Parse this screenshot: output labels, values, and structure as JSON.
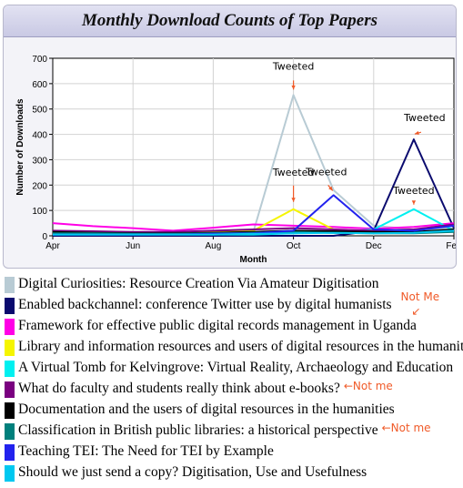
{
  "chart_data": {
    "type": "line",
    "title": "Monthly Download Counts of Top Papers",
    "xlabel": "Month",
    "ylabel": "Number of Downloads",
    "ylim": [
      0,
      700
    ],
    "yticks": [
      0,
      100,
      200,
      300,
      400,
      500,
      600,
      700
    ],
    "x": [
      "Apr",
      "May",
      "Jun",
      "Jul",
      "Aug",
      "Sep",
      "Oct",
      "Nov",
      "Dec",
      "Jan",
      "Feb"
    ],
    "xtick_labels": [
      "Apr",
      "Jun",
      "Aug",
      "Oct",
      "Dec",
      "Feb"
    ],
    "grid": true,
    "legend_position": "bottom",
    "series": [
      {
        "name": "Digital Curiosities: Resource Creation Via Amateur Digitisation",
        "color": "#b8cbd4",
        "values": [
          10,
          8,
          5,
          5,
          8,
          15,
          555,
          180,
          40,
          25,
          30
        ]
      },
      {
        "name": "Enabled backchannel: conference Twitter use by digital humanists",
        "color": "#0a0a6e",
        "values": [
          0,
          0,
          0,
          0,
          0,
          0,
          0,
          0,
          20,
          380,
          30
        ]
      },
      {
        "name": "Framework for effective public digital records management in Uganda",
        "color": "#ff00e6",
        "values": [
          50,
          38,
          30,
          20,
          32,
          45,
          40,
          35,
          28,
          35,
          50
        ]
      },
      {
        "name": "Library and information resources and users of digital resources in the humanities",
        "color": "#f5f500",
        "values": [
          20,
          15,
          12,
          12,
          15,
          20,
          105,
          25,
          15,
          15,
          20
        ]
      },
      {
        "name": "A Virtual Tomb for Kelvingrove: Virtual Reality, Archaeology and Education",
        "color": "#00f0f0",
        "values": [
          5,
          5,
          5,
          5,
          5,
          5,
          10,
          15,
          25,
          105,
          20
        ]
      },
      {
        "name": "What do faculty and students really think about e-books?",
        "color": "#7a0080",
        "values": [
          20,
          18,
          15,
          15,
          20,
          25,
          30,
          25,
          20,
          25,
          45
        ]
      },
      {
        "name": "Documentation and the users of digital resources in the humanities",
        "color": "#000000",
        "values": [
          15,
          12,
          10,
          10,
          12,
          15,
          20,
          18,
          15,
          15,
          25
        ]
      },
      {
        "name": "Classification in British public libraries: a historical perspective",
        "color": "#00807c",
        "values": [
          10,
          10,
          8,
          8,
          10,
          12,
          15,
          12,
          10,
          10,
          15
        ]
      },
      {
        "name": "Teaching TEI: The Need for TEI by Example",
        "color": "#2222ee",
        "values": [
          5,
          5,
          5,
          5,
          8,
          10,
          20,
          160,
          25,
          20,
          40
        ]
      },
      {
        "name": "Should we just send a copy? Digitisation, Use and Usefulness",
        "color": "#00c8f0",
        "values": [
          5,
          5,
          5,
          5,
          5,
          8,
          10,
          12,
          10,
          12,
          20
        ]
      }
    ],
    "annotations": [
      {
        "text": "Tweeted",
        "series": "Digital Curiosities: Resource Creation Via Amateur Digitisation",
        "month": "Oct",
        "value": 555
      },
      {
        "text": "Tweeted",
        "series": "Enabled backchannel: conference Twitter use by digital humanists",
        "month": "Jan",
        "value": 380
      },
      {
        "text": "Tweeted",
        "series": "Library and information resources and users of digital resources in the humanities",
        "month": "Oct",
        "value": 105
      },
      {
        "text": "Tweeted",
        "series": "Teaching TEI: The Need for TEI by Example",
        "month": "Nov",
        "value": 160
      },
      {
        "text": "Tweeted",
        "series": "A Virtual Tomb for Kelvingrove: Virtual Reality, Archaeology and Education",
        "month": "Jan",
        "value": 105
      }
    ]
  },
  "legend_notes": [
    {
      "text": "Not Me",
      "series_index": 1
    },
    {
      "text": "Not me",
      "series_index": 5
    },
    {
      "text": "Not me",
      "series_index": 7
    }
  ]
}
